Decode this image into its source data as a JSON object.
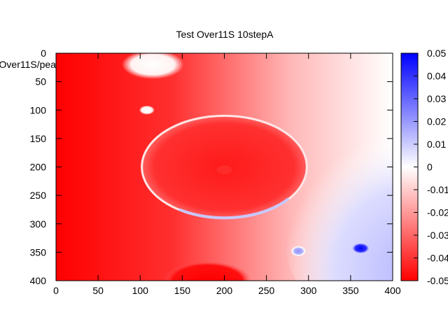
{
  "chart_data": {
    "type": "heatmap",
    "title": "Test Over11S 10stepA",
    "ylabel": "Over11S/pea",
    "xlim": [
      0,
      400
    ],
    "ylim": [
      0,
      400
    ],
    "y_inverted": true,
    "x_ticks": [
      "0",
      "50",
      "100",
      "150",
      "200",
      "250",
      "300",
      "350",
      "400"
    ],
    "y_ticks": [
      "0",
      "50",
      "100",
      "150",
      "200",
      "250",
      "300",
      "350",
      "400"
    ],
    "colorbar": {
      "range": [
        -0.05,
        0.05
      ],
      "low_color": "#ff0000",
      "mid_color": "#ffffff",
      "high_color": "#0000ff",
      "ticks": [
        "0.05",
        "0.04",
        "0.03",
        "0.02",
        "0.01",
        "0",
        "-0.01",
        "-0.02",
        "-0.03",
        "-0.04",
        "-0.05"
      ]
    },
    "features": [
      {
        "kind": "blob",
        "cx": 115,
        "cy": 20,
        "rx": 32,
        "ry": 22,
        "value": 0.0
      },
      {
        "kind": "blob",
        "cx": 108,
        "cy": 100,
        "rx": 8,
        "ry": 7,
        "value": 0.0
      },
      {
        "kind": "ring",
        "cx": 200,
        "cy": 200,
        "rx": 98,
        "ry": 90,
        "value": 0.0
      },
      {
        "kind": "blob",
        "cx": 200,
        "cy": 205,
        "rx": 8,
        "ry": 7,
        "value": -0.03
      },
      {
        "kind": "blob",
        "cx": 288,
        "cy": 348,
        "rx": 8,
        "ry": 8,
        "value": 0.03
      },
      {
        "kind": "blob",
        "cx": 362,
        "cy": 343,
        "rx": 10,
        "ry": 9,
        "value": 0.05
      },
      {
        "kind": "blob",
        "cx": 180,
        "cy": 400,
        "rx": 45,
        "ry": 30,
        "value": -0.05
      }
    ]
  }
}
